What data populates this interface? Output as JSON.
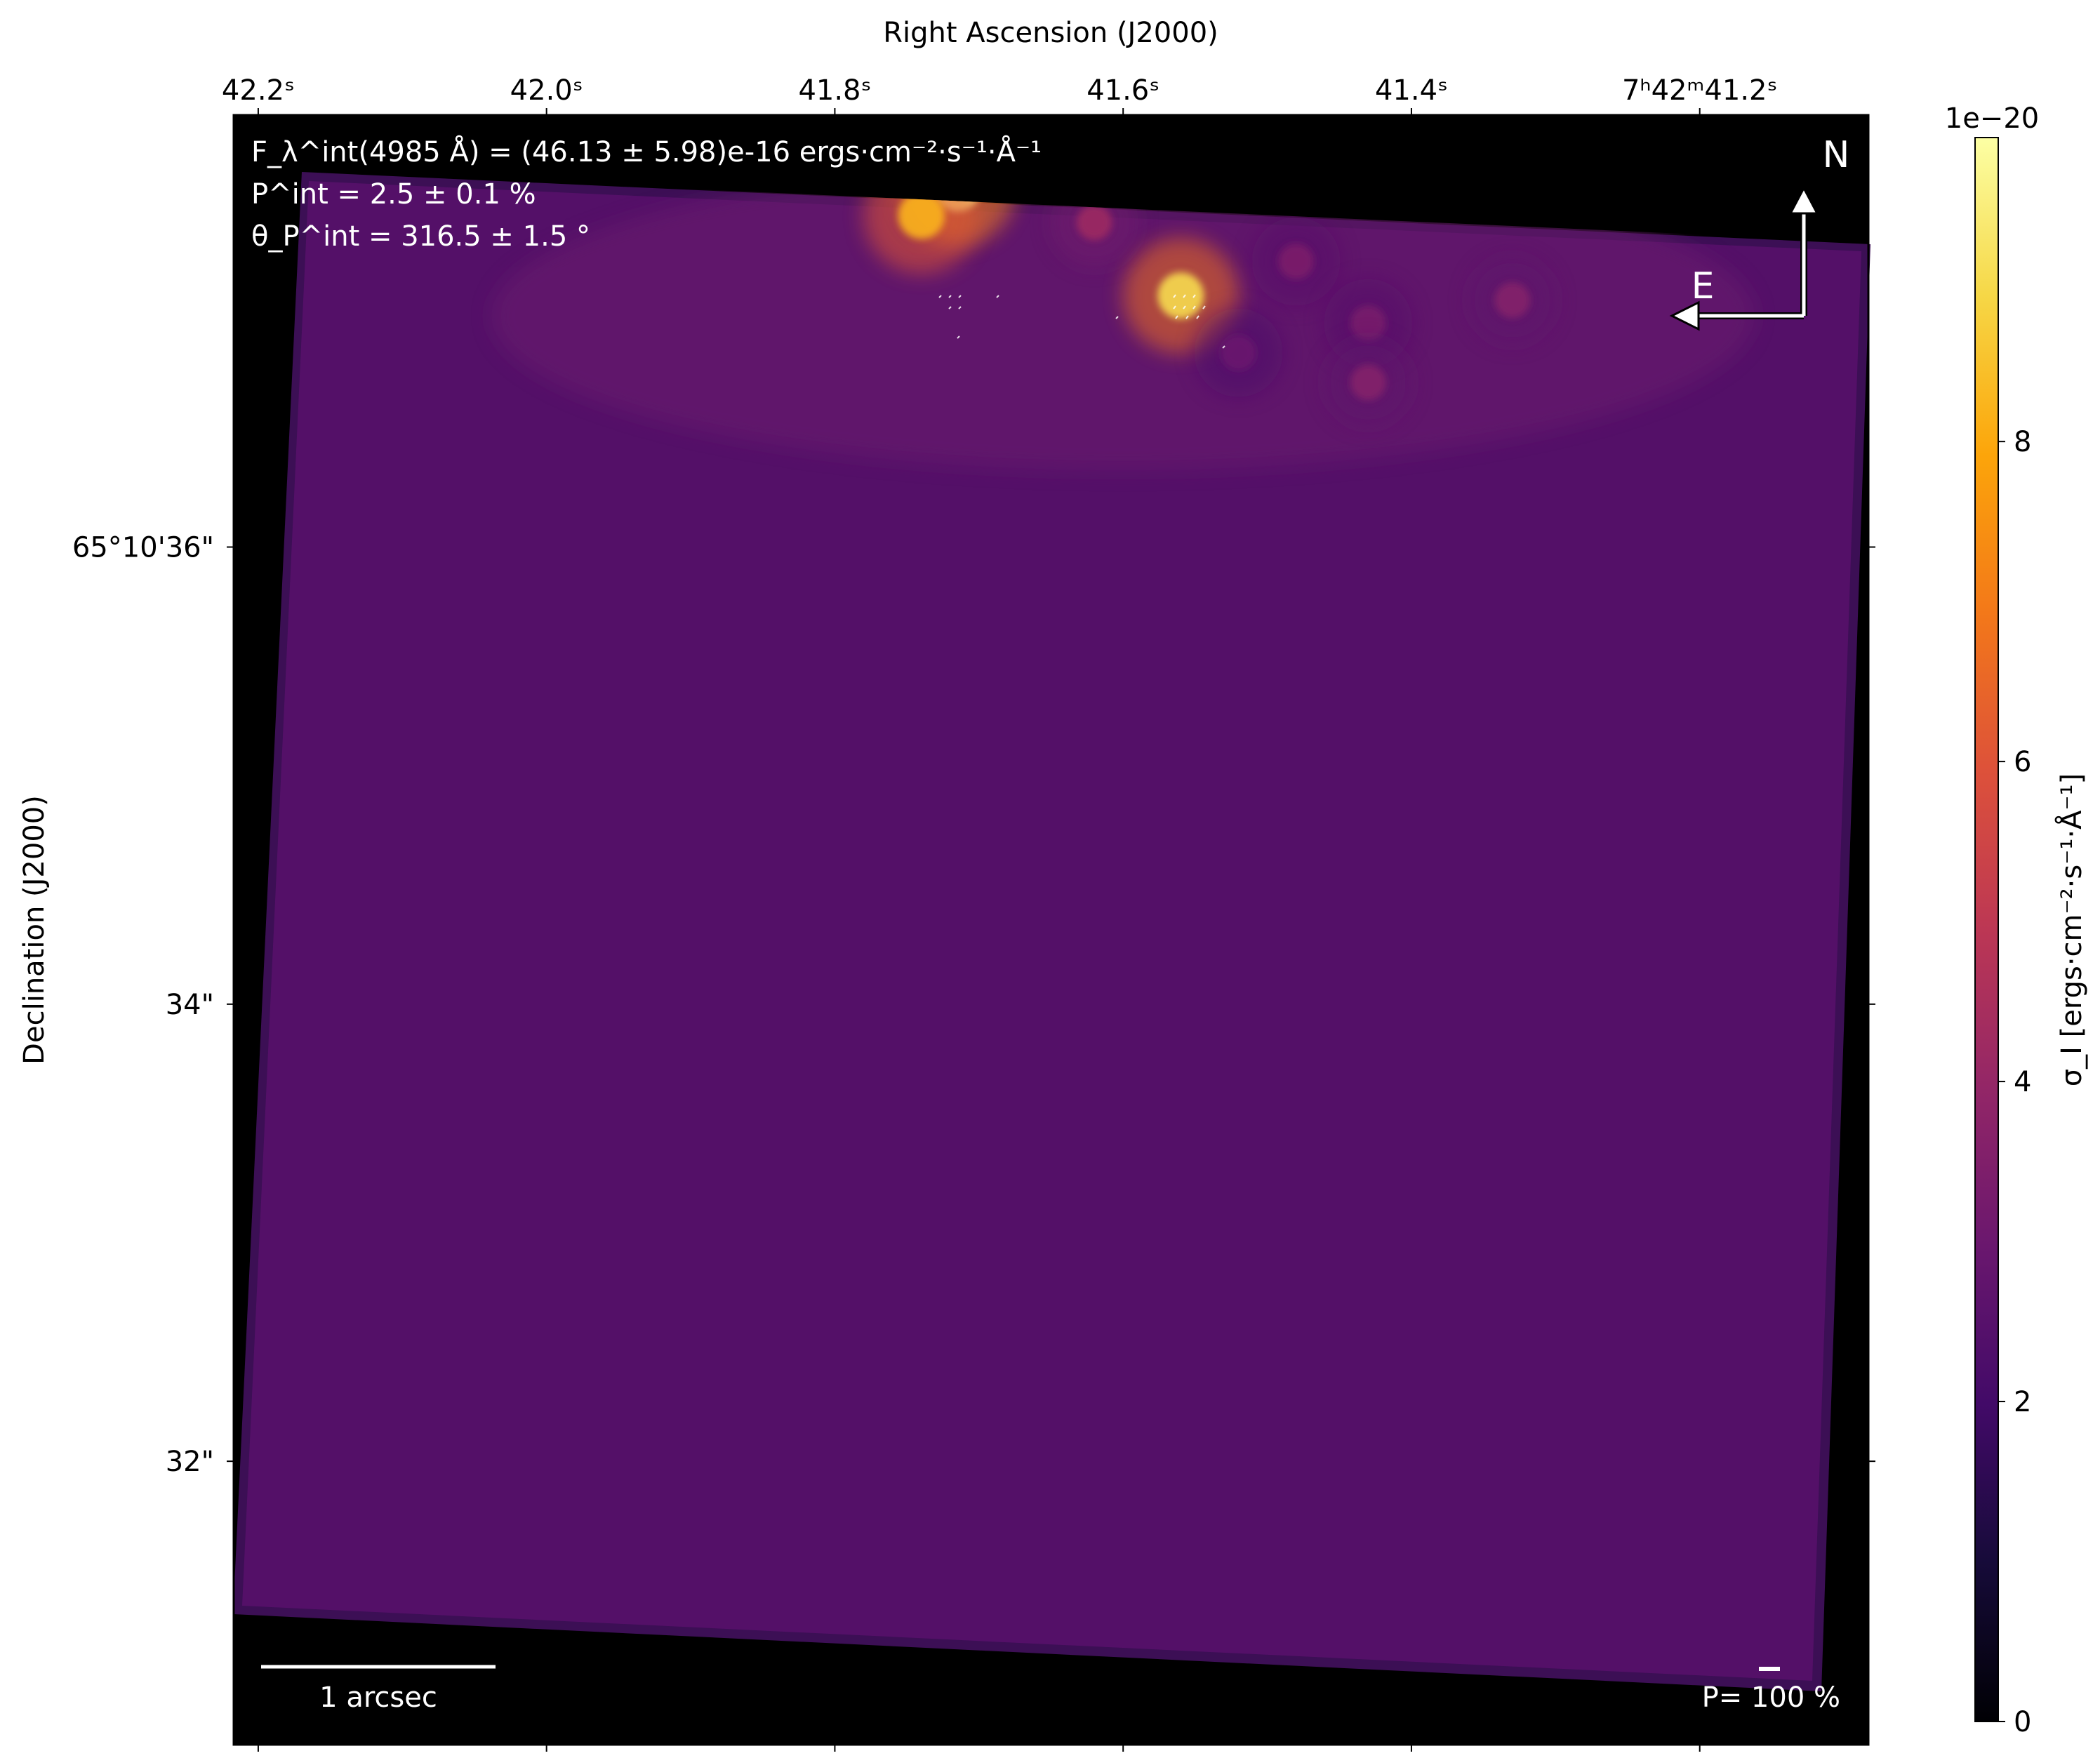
{
  "chart_data": {
    "type": "heatmap",
    "title": "",
    "xlabel": "Right Ascension (J2000)",
    "ylabel": "Declination (J2000)",
    "x_ticks": [
      {
        "value": 42.2,
        "label": "42.2ˢ"
      },
      {
        "value": 42.0,
        "label": "42.0ˢ"
      },
      {
        "value": 41.8,
        "label": "41.8ˢ"
      },
      {
        "value": 41.6,
        "label": "41.6ˢ"
      },
      {
        "value": 41.4,
        "label": "41.4ˢ"
      },
      {
        "value": 41.2,
        "label": "7ʰ42ᵐ41.2ˢ"
      }
    ],
    "y_ticks": [
      {
        "value": 36,
        "label": "65°10'36\""
      },
      {
        "value": 34,
        "label": "34\""
      },
      {
        "value": 32,
        "label": "32\""
      }
    ],
    "xlim": [
      42.217,
      41.083
    ],
    "ylim": [
      30.76,
      37.89
    ],
    "annotations": {
      "flux": "F_λ^int(4985 Å) = (46.13 ± 5.98)e-16 ergs·cm⁻²·s⁻¹·Å⁻¹",
      "pol_degree": "P^int = 2.5 ± 0.1 %",
      "pol_angle": "θ_P^int = 316.5 ± 1.5 °",
      "north": "N",
      "east": "E",
      "scale_bar": "1 arcsec",
      "pol_scale": "P= 100 %"
    },
    "colorbar": {
      "label": "σ_I [ergs·cm⁻²·s⁻¹·Å⁻¹]",
      "multiplier": "1e−20",
      "range": [
        0,
        9.9
      ],
      "ticks": [
        {
          "value": 0,
          "label": "0"
        },
        {
          "value": 2,
          "label": "2"
        },
        {
          "value": 4,
          "label": "4"
        },
        {
          "value": 6,
          "label": "6"
        },
        {
          "value": 8,
          "label": "8"
        }
      ],
      "colormap": "inferno"
    },
    "hotspots": [
      {
        "ra": 41.715,
        "dec": 37.57,
        "value": 9.6
      },
      {
        "ra": 41.74,
        "dec": 37.45,
        "value": 8.2
      },
      {
        "ra": 41.56,
        "dec": 37.1,
        "value": 9.0
      },
      {
        "ra": 41.62,
        "dec": 37.42,
        "value": 4.2
      },
      {
        "ra": 41.48,
        "dec": 37.25,
        "value": 3.4
      },
      {
        "ra": 41.33,
        "dec": 37.08,
        "value": 3.6
      },
      {
        "ra": 41.43,
        "dec": 36.98,
        "value": 3.3
      },
      {
        "ra": 41.43,
        "dec": 36.72,
        "value": 3.6
      },
      {
        "ra": 41.52,
        "dec": 36.85,
        "value": 3.0
      }
    ],
    "background_value": 2.05,
    "grid": false,
    "legend": "none"
  },
  "colors": {
    "axes_background": "#000000",
    "map_fill": "#541068",
    "text_on_map": "#ffffff"
  }
}
